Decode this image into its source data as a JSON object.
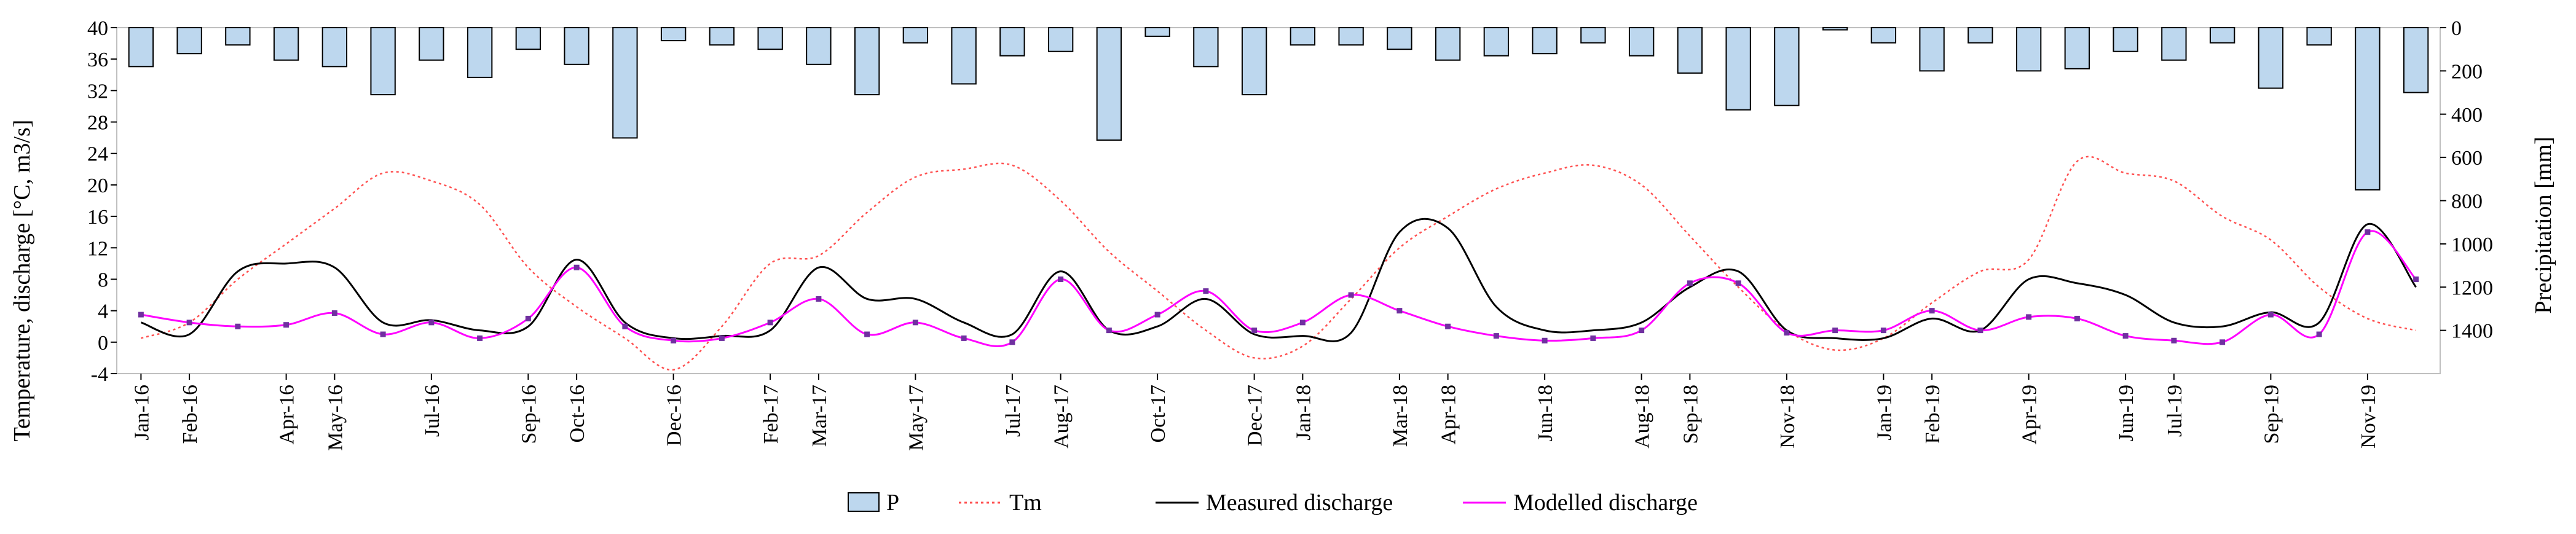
{
  "chart_data": {
    "type": "combo",
    "categories": [
      "Jan-16",
      "Feb-16",
      "Mar-16",
      "Apr-16",
      "May-16",
      "Jun-16",
      "Jul-16",
      "Aug-16",
      "Sep-16",
      "Oct-16",
      "Nov-16",
      "Dec-16",
      "Jan-17",
      "Feb-17",
      "Mar-17",
      "Apr-17",
      "May-17",
      "Jun-17",
      "Jul-17",
      "Aug-17",
      "Sep-17",
      "Oct-17",
      "Nov-17",
      "Dec-17",
      "Jan-18",
      "Feb-18",
      "Mar-18",
      "Apr-18",
      "May-18",
      "Jun-18",
      "Jul-18",
      "Aug-18",
      "Sep-18",
      "Oct-18",
      "Nov-18",
      "Dec-18",
      "Jan-19",
      "Feb-19",
      "Mar-19",
      "Apr-19",
      "May-19",
      "Jun-19",
      "Jul-19",
      "Aug-19",
      "Sep-19",
      "Oct-19",
      "Nov-19",
      "Dec-19"
    ],
    "x_tick_labels": [
      "Jan-16",
      "Feb-16",
      "Apr-16",
      "May-16",
      "Jul-16",
      "Sep-16",
      "Oct-16",
      "Dec-16",
      "Feb-17",
      "Mar-17",
      "May-17",
      "Jul-17",
      "Aug-17",
      "Oct-17",
      "Dec-17",
      "Jan-18",
      "Mar-18",
      "Apr-18",
      "Jun-18",
      "Aug-18",
      "Sep-18",
      "Nov-18",
      "Jan-19",
      "Feb-19",
      "Apr-19",
      "Jul-19",
      "Sep-19",
      "Nov-19"
    ],
    "x_tick_positions": [
      0,
      1,
      3,
      4,
      6,
      8,
      9,
      11,
      13,
      14,
      16,
      18,
      19,
      21,
      23,
      24,
      26,
      27,
      29,
      31,
      32,
      34,
      36,
      37,
      39,
      42,
      44,
      46
    ],
    "x_tick_labels_extra": [
      "Jun-19"
    ],
    "left_axis": {
      "title": "Temperature, discharge [°C, m3/s]",
      "ylim": [
        -4,
        40
      ],
      "ticks": [
        "-4",
        "0",
        "4",
        "8",
        "12",
        "16",
        "20",
        "24",
        "28",
        "32",
        "36",
        "40"
      ]
    },
    "right_axis": {
      "title": "Precipitation [mm]",
      "ylim": [
        0,
        1600
      ],
      "inverted": true,
      "ticks": [
        "0",
        "200",
        "400",
        "600",
        "800",
        "1000",
        "1200",
        "1400"
      ]
    },
    "series": [
      {
        "name": "P",
        "type": "bar",
        "axis": "right",
        "color": "#bdd7ee",
        "stroke": "#000000",
        "values": [
          180,
          120,
          80,
          150,
          180,
          310,
          150,
          230,
          100,
          170,
          510,
          60,
          80,
          100,
          170,
          310,
          70,
          260,
          130,
          110,
          520,
          40,
          180,
          310,
          80,
          80,
          100,
          150,
          130,
          120,
          70,
          130,
          210,
          380,
          360,
          10,
          70,
          200,
          70,
          200,
          190,
          110,
          150,
          70,
          280,
          80,
          750,
          300
        ]
      },
      {
        "name": "Tm",
        "type": "line",
        "axis": "left",
        "color": "#ff5050",
        "dash": "dotted",
        "values": [
          0.5,
          2.5,
          8.0,
          12.5,
          17.0,
          21.5,
          20.5,
          17.5,
          9.5,
          4.5,
          0.5,
          -3.5,
          2.0,
          10.0,
          11.0,
          16.5,
          21.0,
          22.0,
          22.5,
          18.0,
          11.5,
          6.5,
          1.5,
          -2.0,
          -0.5,
          5.5,
          12.0,
          16.0,
          19.5,
          21.5,
          22.5,
          20.0,
          13.5,
          7.0,
          1.5,
          -1.0,
          0.5,
          5.0,
          9.0,
          10.5,
          23.0,
          21.5,
          20.5,
          16.0,
          13.0,
          7.0,
          3.0,
          1.5
        ]
      },
      {
        "name": "Measured discharge",
        "type": "line",
        "axis": "left",
        "color": "#000000",
        "values": [
          2.5,
          1.0,
          9.0,
          10.0,
          9.5,
          2.5,
          2.8,
          1.5,
          2.0,
          10.5,
          2.5,
          0.5,
          0.8,
          1.5,
          9.5,
          5.5,
          5.5,
          2.5,
          1.0,
          9.0,
          1.5,
          2.0,
          5.5,
          1.0,
          0.8,
          1.2,
          14.0,
          14.5,
          4.5,
          1.5,
          1.5,
          2.5,
          7.0,
          9.0,
          1.5,
          0.5,
          0.5,
          3.0,
          1.5,
          8.0,
          7.5,
          6.0,
          2.5,
          2.0,
          3.8,
          2.5,
          15.0,
          7.0
        ]
      },
      {
        "name": "Modelled discharge",
        "type": "line",
        "axis": "left",
        "color": "#ff00ff",
        "markers": true,
        "values": [
          3.5,
          2.5,
          2.0,
          2.2,
          3.7,
          1.0,
          2.5,
          0.5,
          3.0,
          9.5,
          2.0,
          0.2,
          0.5,
          2.5,
          5.5,
          1.0,
          2.5,
          0.5,
          0.0,
          8.0,
          1.5,
          3.5,
          6.5,
          1.5,
          2.5,
          6.0,
          4.0,
          2.0,
          0.8,
          0.2,
          0.5,
          1.5,
          7.5,
          7.5,
          1.2,
          1.5,
          1.5,
          4.0,
          1.5,
          3.2,
          3.0,
          0.8,
          0.2,
          0.0,
          3.5,
          1.0,
          14.0,
          8.0
        ]
      }
    ],
    "legend": {
      "placement": "bottom-center",
      "entries": [
        "P",
        "Tm",
        "Measured discharge",
        "Modelled discharge"
      ]
    }
  }
}
